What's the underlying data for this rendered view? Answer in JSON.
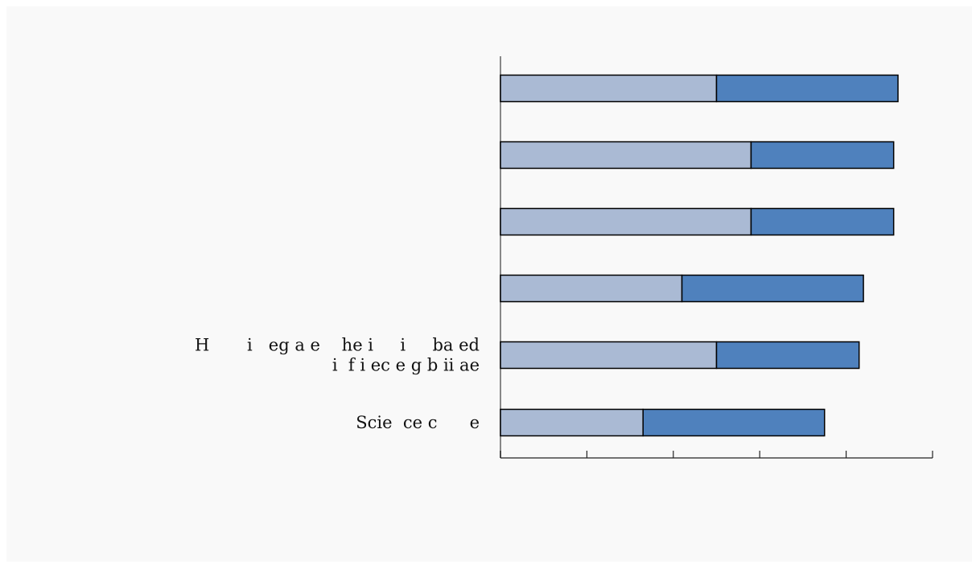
{
  "chart_data": {
    "type": "bar",
    "stacked": true,
    "orientation": "horizontal",
    "categories": [
      "",
      "",
      "",
      "",
      "H       i   eg a e    he i     i     ba ed\ni  f i ec e g b ii ae",
      "Scie  ce c      e"
    ],
    "series": [
      {
        "values": [
          2.5,
          2.9,
          2.9,
          2.1,
          2.5,
          1.65
        ]
      },
      {
        "values": [
          2.1,
          1.65,
          1.65,
          2.1,
          1.65,
          2.1
        ]
      }
    ],
    "xlim": [
      0,
      5
    ],
    "xticks": [
      0,
      1,
      2,
      3,
      4,
      5
    ],
    "colors": {
      "series_0": "#aabad4",
      "series_1": "#4f81bd",
      "axis": "#888888",
      "outline": "#000000"
    },
    "grid": false,
    "legend": "none",
    "title": "",
    "xlabel": "",
    "ylabel": ""
  }
}
